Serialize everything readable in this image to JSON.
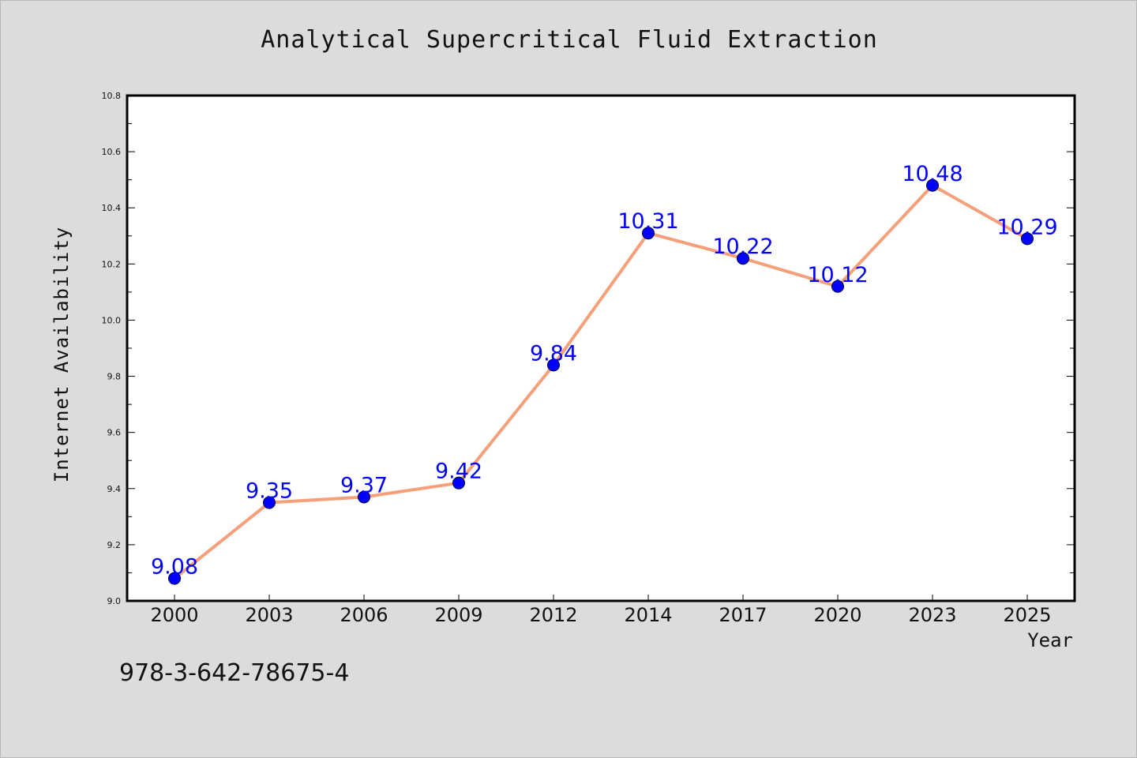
{
  "chart_data": {
    "type": "line",
    "title": "Analytical Supercritical Fluid Extraction",
    "xlabel": "Year",
    "ylabel": "Internet Availability",
    "categories": [
      "2000",
      "2003",
      "2006",
      "2009",
      "2012",
      "2014",
      "2017",
      "2020",
      "2023",
      "2025"
    ],
    "series": [
      {
        "values": [
          9.08,
          9.35,
          9.37,
          9.42,
          9.84,
          10.31,
          10.22,
          10.12,
          10.48,
          10.29
        ],
        "data_labels": [
          "9.08",
          "9.35",
          "9.37",
          "9.42",
          "9.84",
          "10.31",
          "10.22",
          "10.12",
          "10.48",
          "10.29"
        ],
        "line_color": "#f5a07a",
        "marker_color": "#0000ff"
      }
    ],
    "ylim": [
      9.0,
      10.8
    ],
    "yticks": [
      "9.0",
      "9.2",
      "9.4",
      "9.6",
      "9.8",
      "10.0",
      "10.2",
      "10.4",
      "10.6",
      "10.8"
    ],
    "grid": false,
    "legend": "none"
  },
  "footer": {
    "isbn": "978-3-642-78675-4"
  },
  "colors": {
    "background": "#dcdcdc",
    "plot_area": "#ffffff",
    "line": "#f5a07a",
    "marker": "#0000ff",
    "data_label": "#0000ff"
  }
}
